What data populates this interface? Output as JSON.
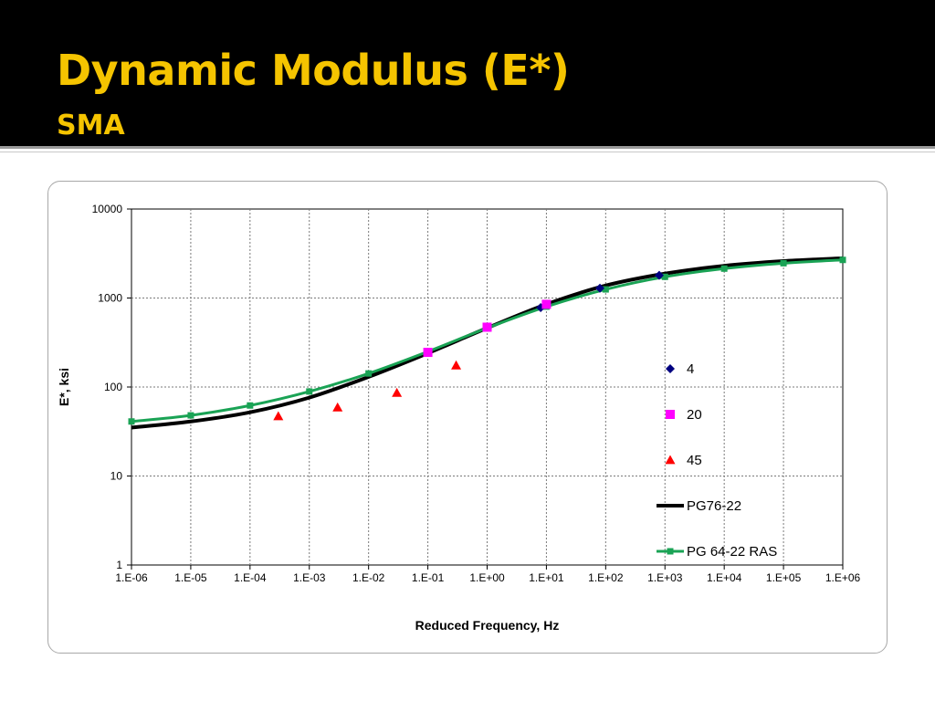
{
  "slide": {
    "title": "Dynamic Modulus (E*)",
    "subtitle": "SMA"
  },
  "colors": {
    "header_bg": "#000000",
    "title": "#f5c400",
    "series_4": "#000080",
    "series_20": "#ff00ff",
    "series_45": "#ff0000",
    "line_pg7622": "#000000",
    "line_pg6422ras": "#1aa355"
  },
  "chart_data": {
    "type": "scatter",
    "xlabel": "Reduced Frequency, Hz",
    "ylabel": "E*, ksi",
    "x_scale": "log",
    "y_scale": "log",
    "xlim": [
      1e-06,
      1000000.0
    ],
    "ylim": [
      1,
      10000
    ],
    "grid": true,
    "legend_position": "right",
    "x_tick_labels": [
      "1.E-06",
      "1.E-05",
      "1.E-04",
      "1.E-03",
      "1.E-02",
      "1.E-01",
      "1.E+00",
      "1.E+01",
      "1.E+02",
      "1.E+03",
      "1.E+04",
      "1.E+05",
      "1.E+06"
    ],
    "y_tick_labels": [
      "1",
      "10",
      "100",
      "1000",
      "10000"
    ],
    "series": [
      {
        "name": "4",
        "kind": "markers",
        "marker": "diamond",
        "points": [
          [
            8,
            780
          ],
          [
            80,
            1290
          ],
          [
            800,
            1800
          ]
        ]
      },
      {
        "name": "20",
        "kind": "markers",
        "marker": "square",
        "points": [
          [
            0.1,
            245
          ],
          [
            1,
            470
          ],
          [
            10,
            850
          ]
        ]
      },
      {
        "name": "45",
        "kind": "markers",
        "marker": "triangle",
        "points": [
          [
            0.0003,
            47
          ],
          [
            0.003,
            59
          ],
          [
            0.03,
            86
          ],
          [
            0.3,
            175
          ]
        ]
      },
      {
        "name": "PG76-22",
        "kind": "line",
        "points": [
          [
            1e-06,
            35
          ],
          [
            1e-05,
            41
          ],
          [
            0.0001,
            52
          ],
          [
            0.001,
            76
          ],
          [
            0.01,
            130
          ],
          [
            0.1,
            240
          ],
          [
            1,
            460
          ],
          [
            10,
            850
          ],
          [
            100,
            1380
          ],
          [
            1000,
            1880
          ],
          [
            10000,
            2300
          ],
          [
            100000,
            2600
          ],
          [
            1000000,
            2800
          ]
        ]
      },
      {
        "name": "PG 64-22 RAS",
        "kind": "line-markers",
        "marker": "square",
        "points": [
          [
            1e-06,
            41
          ],
          [
            1e-05,
            48
          ],
          [
            0.0001,
            62
          ],
          [
            0.001,
            89
          ],
          [
            0.01,
            142
          ],
          [
            0.1,
            250
          ],
          [
            1,
            460
          ],
          [
            10,
            800
          ],
          [
            100,
            1250
          ],
          [
            1000,
            1730
          ],
          [
            10000,
            2140
          ],
          [
            100000,
            2460
          ],
          [
            1000000,
            2680
          ]
        ]
      }
    ]
  }
}
